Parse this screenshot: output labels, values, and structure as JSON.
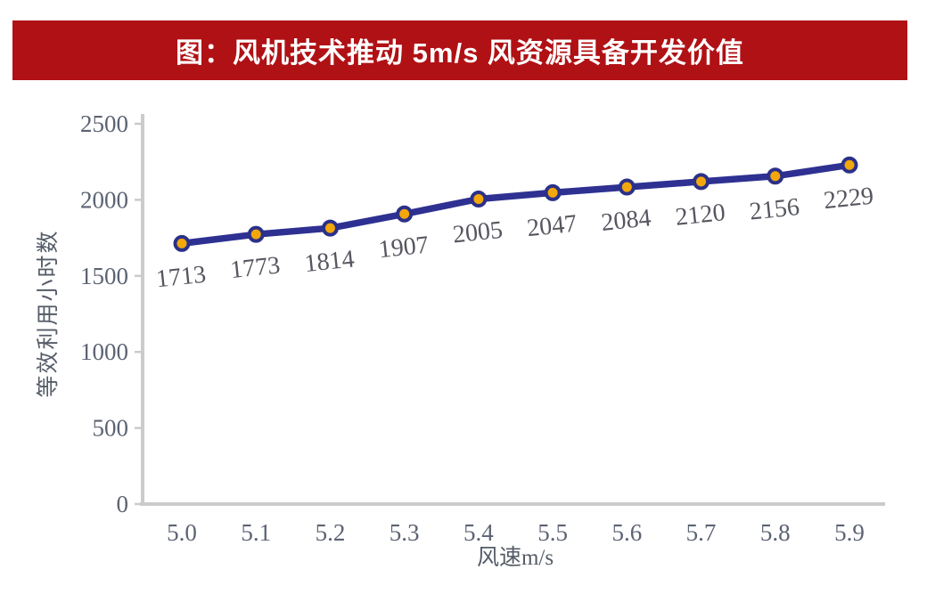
{
  "header": {
    "title": "图：风机技术推动 5m/s 风资源具备开发价值",
    "background_color": "#B01115",
    "text_color": "#FFFFFF"
  },
  "chart_data": {
    "type": "line",
    "title": "图：风机技术推动 5m/s 风资源具备开发价值",
    "xlabel": "风速m/s",
    "ylabel": "等效利用小时数",
    "categories": [
      "5.0",
      "5.1",
      "5.2",
      "5.3",
      "5.4",
      "5.5",
      "5.6",
      "5.7",
      "5.8",
      "5.9"
    ],
    "values": [
      1713,
      1773,
      1814,
      1907,
      2005,
      2047,
      2084,
      2120,
      2156,
      2229
    ],
    "data_labels": [
      "1713",
      "1773",
      "1814",
      "1907",
      "2005",
      "2047",
      "2084",
      "2120",
      "2156",
      "2229"
    ],
    "ylim": [
      0,
      2500
    ],
    "yticks": [
      0,
      500,
      1000,
      1500,
      2000,
      2500
    ],
    "grid": false,
    "legend": "none",
    "line_color": "#2E3191",
    "marker_fill": "#F3A70A",
    "marker_stroke": "#2B3188",
    "axis_color": "#CBCBCB",
    "tick_label_color": "#5C6373",
    "data_label_color": "#55565F",
    "axis_title_color": "#555C68"
  }
}
